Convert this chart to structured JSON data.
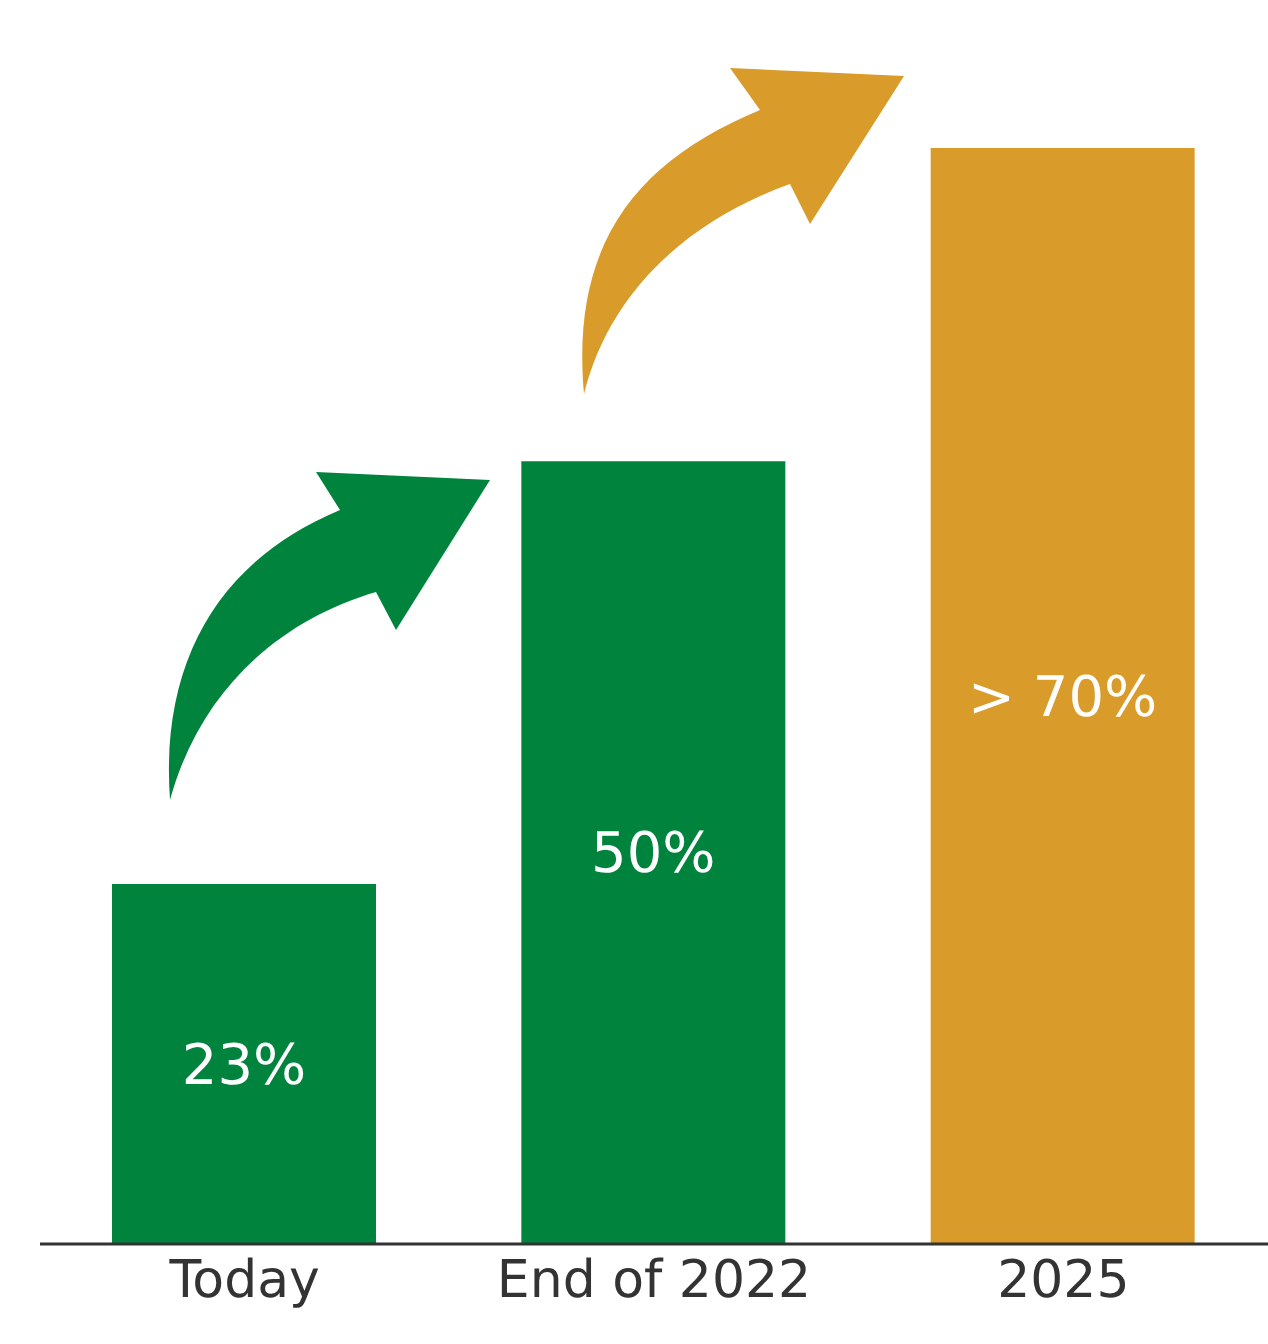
{
  "chart_data": {
    "type": "bar",
    "categories": [
      "Today",
      "End of 2022",
      "2025"
    ],
    "values": [
      23,
      50,
      70
    ],
    "colors": [
      "#00843d",
      "#00843d",
      "#d99c2b"
    ],
    "value_labels": [
      "23%",
      "50%",
      "> 70%"
    ]
  }
}
